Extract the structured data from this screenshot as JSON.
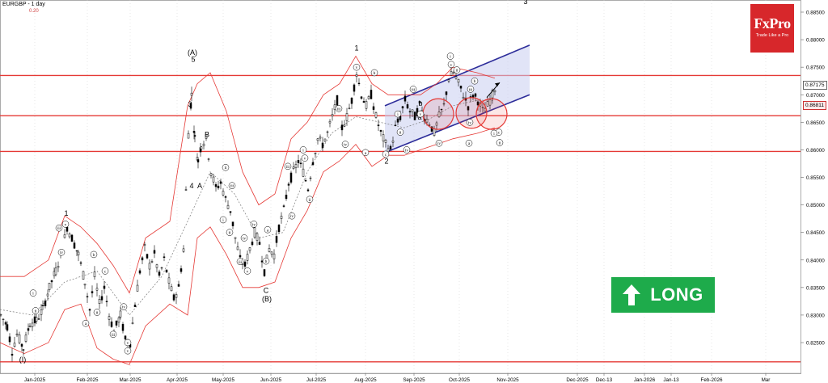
{
  "header": {
    "symbol_title": "EURGBP - 1 day",
    "indicator_value": "0.20"
  },
  "logo": {
    "brand": "FxPro",
    "tagline": "Trade Like a Pro"
  },
  "signal": {
    "label": "LONG",
    "color": "#1eab4b"
  },
  "colors": {
    "price": "#000000",
    "bands": "#e53935",
    "ma": "#777777",
    "levels": "#e53935",
    "channel": "#2d2d9a",
    "channel_fill": "#c9cdf0",
    "grid": "#cfcfcf"
  },
  "chart_data": {
    "type": "candlestick",
    "title": "EURGBP - 1 day",
    "ylim": [
      0.82,
      0.89
    ],
    "y_ticks": [
      "0.88500",
      "0.88000",
      "0.87500",
      "0.87000",
      "0.86500",
      "0.86000",
      "0.85500",
      "0.85000",
      "0.84500",
      "0.84000",
      "0.83500",
      "0.83000",
      "0.82500"
    ],
    "x_ticks": [
      "Jan-2025",
      "Feb-2025",
      "Mar-2025",
      "Apr-2025",
      "May-2025",
      "Jun-2025",
      "Jul-2025",
      "Aug-2025",
      "Sep-2025",
      "Oct-2025",
      "Nov-2025",
      "Dec-2025",
      "Dec-13",
      "Jan-2026",
      "Jan-13",
      "Feb-2026",
      "Mar"
    ],
    "current_price_labels": [
      "0.87175",
      "0.86811"
    ],
    "horizontal_levels": [
      0.8735,
      0.8662,
      0.8597,
      0.8215
    ],
    "price_path": [
      [
        0,
        0.83
      ],
      [
        8,
        0.828
      ],
      [
        14,
        0.8235
      ],
      [
        20,
        0.8265
      ],
      [
        28,
        0.824
      ],
      [
        36,
        0.8285
      ],
      [
        44,
        0.829
      ],
      [
        52,
        0.831
      ],
      [
        60,
        0.835
      ],
      [
        68,
        0.838
      ],
      [
        76,
        0.842
      ],
      [
        82,
        0.846
      ],
      [
        88,
        0.844
      ],
      [
        96,
        0.841
      ],
      [
        104,
        0.836
      ],
      [
        110,
        0.831
      ],
      [
        116,
        0.837
      ],
      [
        122,
        0.832
      ],
      [
        128,
        0.835
      ],
      [
        134,
        0.83
      ],
      [
        140,
        0.827
      ],
      [
        148,
        0.83
      ],
      [
        154,
        0.8255
      ],
      [
        160,
        0.825
      ],
      [
        166,
        0.832
      ],
      [
        172,
        0.838
      ],
      [
        178,
        0.842
      ],
      [
        184,
        0.839
      ],
      [
        190,
        0.841
      ],
      [
        196,
        0.837
      ],
      [
        202,
        0.84
      ],
      [
        208,
        0.836
      ],
      [
        214,
        0.833
      ],
      [
        220,
        0.835
      ],
      [
        226,
        0.842
      ],
      [
        232,
        0.863
      ],
      [
        236,
        0.87
      ],
      [
        240,
        0.862
      ],
      [
        244,
        0.858
      ],
      [
        248,
        0.861
      ],
      [
        254,
        0.862
      ],
      [
        260,
        0.856
      ],
      [
        266,
        0.853
      ],
      [
        272,
        0.854
      ],
      [
        278,
        0.851
      ],
      [
        284,
        0.849
      ],
      [
        290,
        0.844
      ],
      [
        296,
        0.84
      ],
      [
        302,
        0.839
      ],
      [
        308,
        0.842
      ],
      [
        314,
        0.845
      ],
      [
        320,
        0.843
      ],
      [
        326,
        0.838
      ],
      [
        332,
        0.842
      ],
      [
        338,
        0.841
      ],
      [
        344,
        0.846
      ],
      [
        350,
        0.849
      ],
      [
        356,
        0.854
      ],
      [
        362,
        0.856
      ],
      [
        368,
        0.858
      ],
      [
        374,
        0.856
      ],
      [
        380,
        0.853
      ],
      [
        386,
        0.858
      ],
      [
        392,
        0.862
      ],
      [
        398,
        0.861
      ],
      [
        404,
        0.863
      ],
      [
        410,
        0.866
      ],
      [
        416,
        0.869
      ],
      [
        422,
        0.864
      ],
      [
        428,
        0.866
      ],
      [
        434,
        0.869
      ],
      [
        440,
        0.874
      ],
      [
        446,
        0.87
      ],
      [
        452,
        0.868
      ],
      [
        458,
        0.87
      ],
      [
        464,
        0.866
      ],
      [
        470,
        0.863
      ],
      [
        476,
        0.861
      ],
      [
        482,
        0.86
      ],
      [
        488,
        0.864
      ],
      [
        494,
        0.866
      ],
      [
        500,
        0.869
      ],
      [
        506,
        0.867
      ],
      [
        512,
        0.866
      ],
      [
        518,
        0.868
      ],
      [
        524,
        0.866
      ],
      [
        530,
        0.865
      ],
      [
        536,
        0.863
      ],
      [
        542,
        0.866
      ],
      [
        548,
        0.868
      ],
      [
        554,
        0.873
      ],
      [
        560,
        0.874
      ],
      [
        566,
        0.872
      ],
      [
        572,
        0.87
      ],
      [
        578,
        0.868
      ],
      [
        584,
        0.87
      ],
      [
        590,
        0.869
      ],
      [
        596,
        0.867
      ],
      [
        602,
        0.868
      ],
      [
        608,
        0.87
      ],
      [
        612,
        0.8717
      ]
    ],
    "bollinger_upper": [
      [
        0,
        0.837
      ],
      [
        30,
        0.837
      ],
      [
        60,
        0.84
      ],
      [
        80,
        0.848
      ],
      [
        100,
        0.846
      ],
      [
        120,
        0.843
      ],
      [
        140,
        0.839
      ],
      [
        160,
        0.834
      ],
      [
        180,
        0.844
      ],
      [
        210,
        0.847
      ],
      [
        232,
        0.868
      ],
      [
        244,
        0.872
      ],
      [
        260,
        0.874
      ],
      [
        280,
        0.867
      ],
      [
        300,
        0.856
      ],
      [
        320,
        0.85
      ],
      [
        340,
        0.852
      ],
      [
        360,
        0.862
      ],
      [
        380,
        0.865
      ],
      [
        400,
        0.87
      ],
      [
        420,
        0.872
      ],
      [
        440,
        0.877
      ],
      [
        460,
        0.872
      ],
      [
        480,
        0.87
      ],
      [
        500,
        0.87
      ],
      [
        520,
        0.87
      ],
      [
        540,
        0.872
      ],
      [
        560,
        0.875
      ],
      [
        590,
        0.874
      ],
      [
        612,
        0.873
      ]
    ],
    "bollinger_lower": [
      [
        0,
        0.825
      ],
      [
        30,
        0.823
      ],
      [
        60,
        0.825
      ],
      [
        80,
        0.831
      ],
      [
        100,
        0.832
      ],
      [
        120,
        0.824
      ],
      [
        140,
        0.822
      ],
      [
        160,
        0.821
      ],
      [
        180,
        0.828
      ],
      [
        210,
        0.832
      ],
      [
        232,
        0.83
      ],
      [
        244,
        0.844
      ],
      [
        260,
        0.846
      ],
      [
        280,
        0.841
      ],
      [
        300,
        0.835
      ],
      [
        320,
        0.835
      ],
      [
        340,
        0.836
      ],
      [
        360,
        0.844
      ],
      [
        380,
        0.849
      ],
      [
        400,
        0.856
      ],
      [
        420,
        0.858
      ],
      [
        440,
        0.861
      ],
      [
        460,
        0.857
      ],
      [
        480,
        0.859
      ],
      [
        500,
        0.859
      ],
      [
        520,
        0.86
      ],
      [
        540,
        0.861
      ],
      [
        560,
        0.862
      ],
      [
        590,
        0.863
      ],
      [
        612,
        0.864
      ]
    ],
    "moving_average": [
      [
        0,
        0.831
      ],
      [
        40,
        0.83
      ],
      [
        80,
        0.836
      ],
      [
        120,
        0.838
      ],
      [
        160,
        0.83
      ],
      [
        200,
        0.837
      ],
      [
        232,
        0.847
      ],
      [
        260,
        0.856
      ],
      [
        290,
        0.852
      ],
      [
        320,
        0.844
      ],
      [
        350,
        0.845
      ],
      [
        380,
        0.856
      ],
      [
        410,
        0.863
      ],
      [
        440,
        0.866
      ],
      [
        470,
        0.865
      ],
      [
        500,
        0.864
      ],
      [
        530,
        0.8655
      ],
      [
        560,
        0.868
      ],
      [
        590,
        0.869
      ],
      [
        612,
        0.869
      ]
    ],
    "channel": {
      "upper": [
        [
          476,
          0.868
        ],
        [
          655,
          0.879
        ]
      ],
      "lower": [
        [
          476,
          0.8595
        ],
        [
          655,
          0.87
        ]
      ]
    },
    "target_arrow": {
      "from": [
        602,
        0.8695
      ],
      "to": [
        618,
        0.8722
      ]
    },
    "circles": [
      [
        542,
        0.8665
      ],
      [
        583,
        0.8667
      ],
      [
        608,
        0.8665
      ]
    ],
    "wave_labels": [
      {
        "t": "1",
        "x": 82,
        "y": 0.848
      },
      {
        "t": "(I)",
        "x": 28,
        "y": 0.8215
      },
      {
        "t": "(A)",
        "x": 238,
        "y": 0.8772
      },
      {
        "t": "5",
        "x": 239,
        "y": 0.876
      },
      {
        "t": "3",
        "x": 235,
        "y": 0.8678
      },
      {
        "t": "B",
        "x": 256,
        "y": 0.8623
      },
      {
        "t": "4",
        "x": 237,
        "y": 0.853
      },
      {
        "t": "A",
        "x": 247,
        "y": 0.853
      },
      {
        "t": "C",
        "x": 329,
        "y": 0.834
      },
      {
        "t": "(B)",
        "x": 330,
        "y": 0.8325
      },
      {
        "t": "1",
        "x": 441,
        "y": 0.878
      },
      {
        "t": "2",
        "x": 478,
        "y": 0.8575
      },
      {
        "t": "3",
        "x": 650,
        "y": 0.8865
      },
      {
        "t": "a",
        "x": 519,
        "y": 0.8655
      },
      {
        "t": "b",
        "x": 520,
        "y": 0.868
      }
    ],
    "roman_labels": [
      {
        "t": "v",
        "x": 81,
        "y": 0.8465
      },
      {
        "t": "iii",
        "x": 73,
        "y": 0.8458
      },
      {
        "t": "iv",
        "x": 76,
        "y": 0.8414
      },
      {
        "t": "ii",
        "x": 44,
        "y": 0.8308
      },
      {
        "t": "i",
        "x": 41,
        "y": 0.834
      },
      {
        "t": "b",
        "x": 116,
        "y": 0.841
      },
      {
        "t": "a",
        "x": 106,
        "y": 0.8285
      },
      {
        "t": "ii",
        "x": 120,
        "y": 0.8305
      },
      {
        "t": "iii",
        "x": 140,
        "y": 0.8265
      },
      {
        "t": "iv",
        "x": 153,
        "y": 0.8315
      },
      {
        "t": "c",
        "x": 130,
        "y": 0.838
      },
      {
        "t": "v",
        "x": 158,
        "y": 0.825
      },
      {
        "t": "v",
        "x": 158,
        "y": 0.8235
      },
      {
        "t": "ii",
        "x": 279,
        "y": 0.8568
      },
      {
        "t": "iii",
        "x": 287,
        "y": 0.8535
      },
      {
        "t": "i",
        "x": 276,
        "y": 0.8473
      },
      {
        "t": "ii",
        "x": 284,
        "y": 0.845
      },
      {
        "t": "iv",
        "x": 302,
        "y": 0.844
      },
      {
        "t": "iii",
        "x": 297,
        "y": 0.8397
      },
      {
        "t": "v",
        "x": 306,
        "y": 0.838
      },
      {
        "t": "iv",
        "x": 314,
        "y": 0.8465
      },
      {
        "t": "a",
        "x": 331,
        "y": 0.8455
      },
      {
        "t": "b",
        "x": 329,
        "y": 0.8398
      },
      {
        "t": "iii",
        "x": 356,
        "y": 0.857
      },
      {
        "t": "iv",
        "x": 361,
        "y": 0.848
      },
      {
        "t": "i",
        "x": 375,
        "y": 0.86
      },
      {
        "t": "v",
        "x": 377,
        "y": 0.8585
      },
      {
        "t": "ii",
        "x": 383,
        "y": 0.851
      },
      {
        "t": "iii",
        "x": 419,
        "y": 0.8675
      },
      {
        "t": "iv",
        "x": 427,
        "y": 0.861
      },
      {
        "t": "v",
        "x": 441,
        "y": 0.875
      },
      {
        "t": "b",
        "x": 463,
        "y": 0.874
      },
      {
        "t": "a",
        "x": 452,
        "y": 0.8595
      },
      {
        "t": "c",
        "x": 477,
        "y": 0.8592
      },
      {
        "t": "i",
        "x": 492,
        "y": 0.8665
      },
      {
        "t": "ii",
        "x": 495,
        "y": 0.8632
      },
      {
        "t": "iii",
        "x": 511,
        "y": 0.871
      },
      {
        "t": "iv",
        "x": 503,
        "y": 0.86
      },
      {
        "t": "v",
        "x": 520,
        "y": 0.8665
      },
      {
        "t": "iv",
        "x": 543,
        "y": 0.8612
      },
      {
        "t": "i",
        "x": 557,
        "y": 0.877
      },
      {
        "t": "v",
        "x": 558,
        "y": 0.8755
      },
      {
        "t": "ii",
        "x": 565,
        "y": 0.8745
      },
      {
        "t": "iii",
        "x": 582,
        "y": 0.871
      },
      {
        "t": "iv",
        "x": 581,
        "y": 0.865
      },
      {
        "t": "b",
        "x": 587,
        "y": 0.8725
      },
      {
        "t": "a",
        "x": 580,
        "y": 0.8612
      },
      {
        "t": "c",
        "x": 617,
        "y": 0.8632
      },
      {
        "t": "i",
        "x": 611,
        "y": 0.863
      },
      {
        "t": "ii",
        "x": 618,
        "y": 0.8613
      }
    ]
  }
}
